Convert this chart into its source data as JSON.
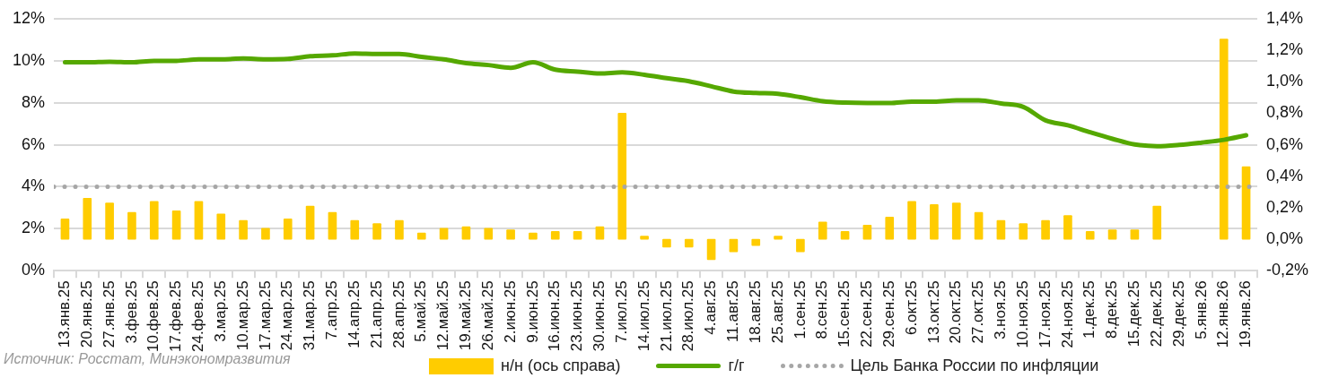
{
  "chart_data": {
    "type": "bar",
    "categories": [
      "13.янв.25",
      "20.янв.25",
      "27.янв.25",
      "3.фев.25",
      "10.фев.25",
      "17.фев.25",
      "24.фев.25",
      "3.мар.25",
      "10.мар.25",
      "17.мар.25",
      "24.мар.25",
      "31.мар.25",
      "7.апр.25",
      "14.апр.25",
      "21.апр.25",
      "28.апр.25",
      "5.май.25",
      "12.май.25",
      "19.май.25",
      "26.май.25",
      "2.июн.25",
      "9.июн.25",
      "16.июн.25",
      "23.июн.25",
      "30.июн.25",
      "7.июл.25",
      "14.июл.25",
      "21.июл.25",
      "28.июл.25",
      "4.авг.25",
      "11.авг.25",
      "18.авг.25",
      "25.авг.25",
      "1.сен.25",
      "8.сен.25",
      "15.сен.25",
      "22.сен.25",
      "29.сен.25",
      "6.окт.25",
      "13.окт.25",
      "20.окт.25",
      "27.окт.25",
      "3.ноя.25",
      "10.ноя.25",
      "17.ноя.25",
      "24.ноя.25",
      "1.дек.25",
      "8.дек.25",
      "15.дек.25",
      "22.дек.25",
      "29.дек.25",
      "5.янв.26",
      "12.янв.26",
      "19.янв.26"
    ],
    "series": [
      {
        "name": "н/н (ось справа)",
        "type": "bar",
        "axis": "y2",
        "color": "#ffcc00",
        "values": [
          0.13,
          0.26,
          0.23,
          0.17,
          0.24,
          0.18,
          0.24,
          0.16,
          0.12,
          0.07,
          0.13,
          0.21,
          0.17,
          0.12,
          0.1,
          0.12,
          0.04,
          0.07,
          0.08,
          0.07,
          0.06,
          0.04,
          0.05,
          0.05,
          0.08,
          0.8,
          0.02,
          -0.05,
          -0.05,
          -0.13,
          -0.08,
          -0.04,
          0.02,
          -0.08,
          0.11,
          0.05,
          0.09,
          0.14,
          0.24,
          0.22,
          0.23,
          0.17,
          0.12,
          0.1,
          0.12,
          0.15,
          0.05,
          0.06,
          0.06,
          0.21,
          null,
          null,
          1.27,
          0.46
        ]
      },
      {
        "name": "г/г",
        "type": "line",
        "axis": "y",
        "color": "#55a800",
        "values": [
          9.92,
          9.92,
          9.95,
          9.92,
          9.99,
          9.99,
          10.06,
          10.06,
          10.1,
          10.06,
          10.08,
          10.21,
          10.25,
          10.34,
          10.32,
          10.32,
          10.18,
          10.06,
          9.88,
          9.79,
          9.66,
          9.92,
          9.57,
          9.48,
          9.39,
          9.44,
          9.33,
          9.17,
          9.02,
          8.78,
          8.53,
          8.46,
          8.42,
          8.26,
          8.07,
          8.0,
          7.98,
          7.98,
          8.05,
          8.05,
          8.11,
          8.11,
          7.96,
          7.8,
          7.16,
          6.92,
          6.59,
          6.28,
          6.01,
          5.93,
          5.99,
          6.1,
          6.23,
          6.45
        ]
      }
    ],
    "ref_lines": [
      {
        "axis": "y",
        "value": 4,
        "label": "Цель Банка России по инфляции",
        "color": "#a6a6a6",
        "line_style": "dotted"
      }
    ],
    "ylim": [
      0,
      12
    ],
    "yticks": [
      {
        "value": 0,
        "label": "0%"
      },
      {
        "value": 2,
        "label": "2%"
      },
      {
        "value": 4,
        "label": "4%"
      },
      {
        "value": 6,
        "label": "6%"
      },
      {
        "value": 8,
        "label": "8%"
      },
      {
        "value": 10,
        "label": "10%"
      },
      {
        "value": 12,
        "label": "12%"
      }
    ],
    "y2lim": [
      -0.2,
      1.4
    ],
    "y2ticks": [
      {
        "value": -0.2,
        "label": "-0,2%"
      },
      {
        "value": 0,
        "label": "0,0%"
      },
      {
        "value": 0.2,
        "label": "0,2%"
      },
      {
        "value": 0.4,
        "label": "0,4%"
      },
      {
        "value": 0.6,
        "label": "0,6%"
      },
      {
        "value": 0.8,
        "label": "0,8%"
      },
      {
        "value": 1.0,
        "label": "1,0%"
      },
      {
        "value": 1.2,
        "label": "1,2%"
      },
      {
        "value": 1.4,
        "label": "1,4%"
      }
    ],
    "grid": "y",
    "legend": "bottom",
    "annotations": [
      "Источник: Росстат, Минэкономразвития"
    ]
  }
}
